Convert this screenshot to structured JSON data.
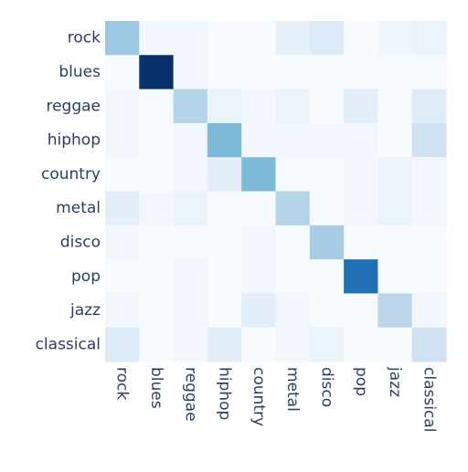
{
  "chart_data": {
    "type": "heatmap",
    "title": "",
    "xlabel": "",
    "ylabel": "",
    "x_categories": [
      "rock",
      "blues",
      "reggae",
      "hiphop",
      "country",
      "metal",
      "disco",
      "pop",
      "jazz",
      "classical"
    ],
    "y_categories": [
      "rock",
      "blues",
      "reggae",
      "hiphop",
      "country",
      "metal",
      "disco",
      "pop",
      "jazz",
      "classical"
    ],
    "values": [
      [
        0.38,
        0.02,
        0.03,
        0.0,
        0.0,
        0.08,
        0.13,
        0.0,
        0.04,
        0.06
      ],
      [
        0.0,
        1.0,
        0.03,
        0.0,
        0.0,
        0.0,
        0.0,
        0.0,
        0.0,
        0.0
      ],
      [
        0.03,
        0.0,
        0.3,
        0.06,
        0.03,
        0.06,
        0.0,
        0.1,
        0.0,
        0.12
      ],
      [
        0.03,
        0.0,
        0.03,
        0.45,
        0.03,
        0.03,
        0.03,
        0.03,
        0.0,
        0.2
      ],
      [
        0.0,
        0.0,
        0.03,
        0.1,
        0.45,
        0.0,
        0.0,
        0.03,
        0.06,
        0.03
      ],
      [
        0.1,
        0.03,
        0.06,
        0.0,
        0.0,
        0.3,
        0.0,
        0.03,
        0.06,
        0.03
      ],
      [
        0.03,
        0.0,
        0.0,
        0.0,
        0.03,
        0.0,
        0.35,
        0.0,
        0.0,
        0.0
      ],
      [
        0.0,
        0.0,
        0.03,
        0.0,
        0.03,
        0.0,
        0.0,
        0.75,
        0.0,
        0.0
      ],
      [
        0.03,
        0.0,
        0.03,
        0.0,
        0.1,
        0.03,
        0.0,
        0.0,
        0.28,
        0.03
      ],
      [
        0.13,
        0.0,
        0.03,
        0.1,
        0.0,
        0.03,
        0.06,
        0.0,
        0.0,
        0.2
      ]
    ],
    "colorscale": [
      "#f7fbff",
      "#08306b"
    ],
    "legend": "none",
    "grid": false
  }
}
